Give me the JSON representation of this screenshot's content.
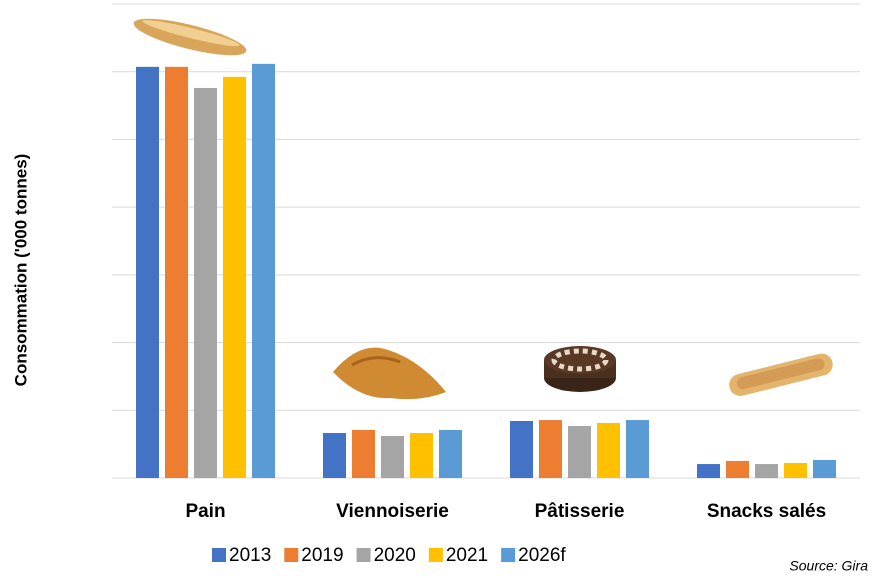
{
  "chart_data": {
    "type": "bar",
    "y_label": "Consommation ('000 tonnes)",
    "source": "Source: Gira",
    "categories": [
      "Pain",
      "Viennoiserie",
      "Pâtisserie",
      "Snacks salés"
    ],
    "series": [
      {
        "name": "2013",
        "color": "#4472c4",
        "values": [
          3036,
          332,
          421,
          103
        ]
      },
      {
        "name": "2019",
        "color": "#ed7d31",
        "values": [
          3036,
          355,
          428,
          126
        ]
      },
      {
        "name": "2020",
        "color": "#a5a5a5",
        "values": [
          2880,
          310,
          384,
          103
        ]
      },
      {
        "name": "2021",
        "color": "#ffc000",
        "values": [
          2962,
          332,
          406,
          111
        ]
      },
      {
        "name": "2026f",
        "color": "#5b9bd5",
        "values": [
          3058,
          355,
          428,
          133
        ]
      }
    ],
    "ylim": [
      0,
      3500
    ],
    "yticks": [
      0,
      500,
      1000,
      1500,
      2000,
      2500,
      3000,
      3500
    ],
    "grid": true
  }
}
